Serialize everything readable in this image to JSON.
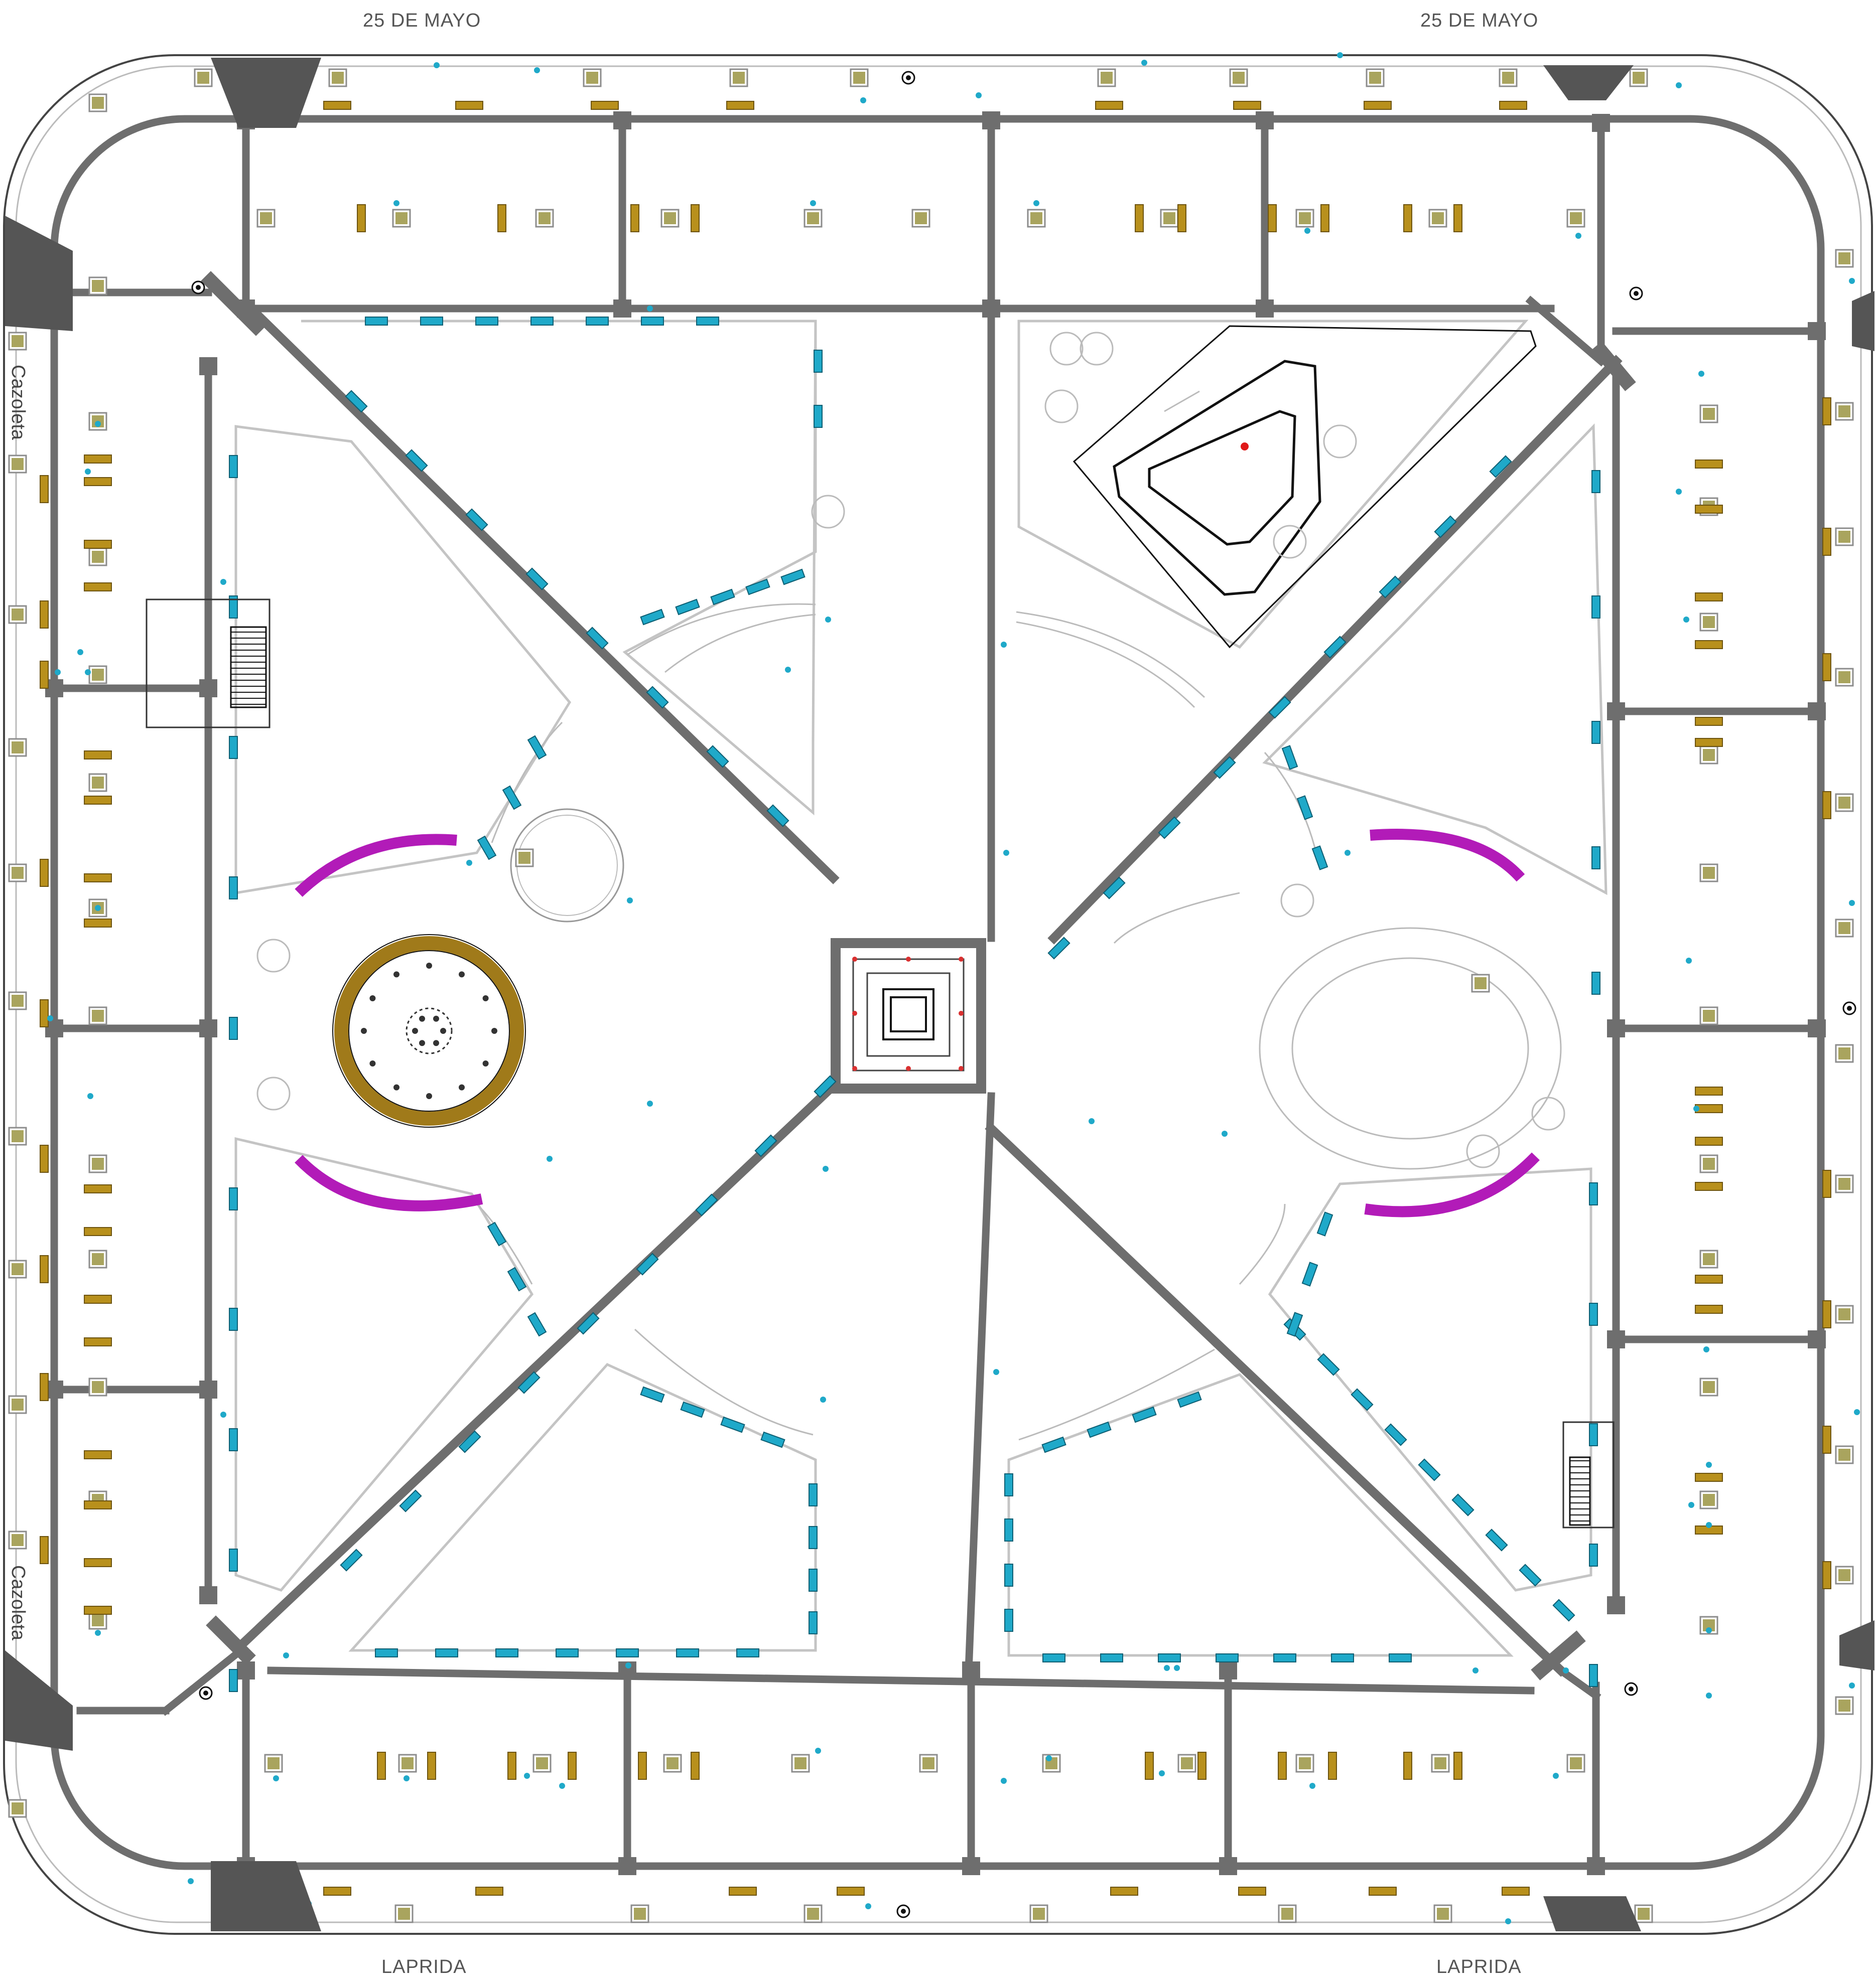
{
  "map": {
    "streets": {
      "top_left": "25 DE MAYO",
      "top_right": "25 DE MAYO",
      "bottom_left": "LAPRIDA",
      "bottom_right": "LAPRIDA"
    },
    "side_labels": {
      "upper": "Cazoleta",
      "lower": "Cazoleta"
    },
    "colors": {
      "path": "#6e6e6e",
      "bench": "#b8901c",
      "tree": "#a9a45e",
      "tree_frame": "#8c8c8c",
      "fountain_ring": "#a07a1a",
      "seat_blue": "#1fa9c9",
      "seat_magenta": "#b21bb8",
      "lamp": "#1fa9c9",
      "corner_ramp": "#555555",
      "outline": "#444444"
    }
  }
}
